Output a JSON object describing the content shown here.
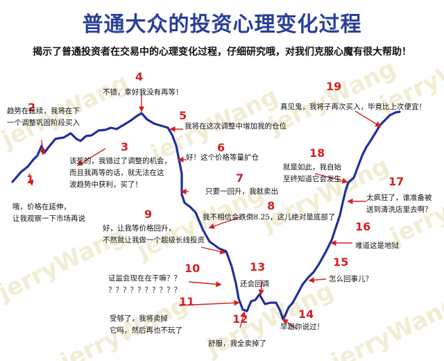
{
  "title": "普通大众的投资心理变化过程",
  "subtitle": "揭示了普通投资者在交易中的心理变化过程，仔细研究哦，对我们克服心魔有很大帮助！",
  "watermark": "jerryWang",
  "colors": {
    "title": "#2a3f9a",
    "curve": "#1f2f9c",
    "arrow": "#d62020",
    "number": "#d62020",
    "watermark": "#e6dfb3"
  },
  "stages": [
    {
      "num": "1",
      "lines": [
        "哦，价格在延伸，",
        "让我观察一下市场再说"
      ]
    },
    {
      "num": "2",
      "lines": [
        "趋势在延续，我将在下",
        "一个调整巩固阶段买入"
      ]
    },
    {
      "num": "3",
      "lines": [
        "该死的，我错过了调整的机会，",
        "而且我再等的话，就无法在这",
        "波趋势中获利，买了！"
      ]
    },
    {
      "num": "4",
      "lines": [
        "不错，幸好我没有再等！"
      ]
    },
    {
      "num": "5",
      "lines": [
        "我将在这次调整中增加我的仓位"
      ]
    },
    {
      "num": "6",
      "lines": [
        "好！这个价格等量扩仓"
      ]
    },
    {
      "num": "7",
      "lines": [
        "只要一回升，我就卖出"
      ]
    },
    {
      "num": "8",
      "lines": [
        "我不相信会跌倒8.25，这儿绝对是底部了"
      ]
    },
    {
      "num": "9",
      "lines": [
        "好，让我等价格回升，",
        "不然就让我做一个超级长线投资"
      ]
    },
    {
      "num": "10",
      "lines": [
        "证监会现在在干嘛？？",
        "？？？？？？？？？？"
      ]
    },
    {
      "num": "11",
      "lines": [
        "受够了，我将卖掉",
        "它吗，然后再也不玩了"
      ]
    },
    {
      "num": "12",
      "lines": [
        "舒服，我全卖掉了"
      ]
    },
    {
      "num": "13",
      "lines": [
        "还会回调"
      ]
    },
    {
      "num": "14",
      "lines": [
        "早跟你说过！"
      ]
    },
    {
      "num": "15",
      "lines": [
        "怎么回事儿？"
      ]
    },
    {
      "num": "16",
      "lines": [
        "难道这是地狱"
      ]
    },
    {
      "num": "17",
      "lines": [
        "太疯狂了，谁准备被",
        "送到清洗店里去啊？"
      ]
    },
    {
      "num": "18",
      "lines": [
        "就是如此，我自始",
        "至终知道它会发生"
      ]
    },
    {
      "num": "19",
      "lines": [
        "真见鬼，我将子再次买入，毕竟比上次便宜！"
      ]
    }
  ]
}
